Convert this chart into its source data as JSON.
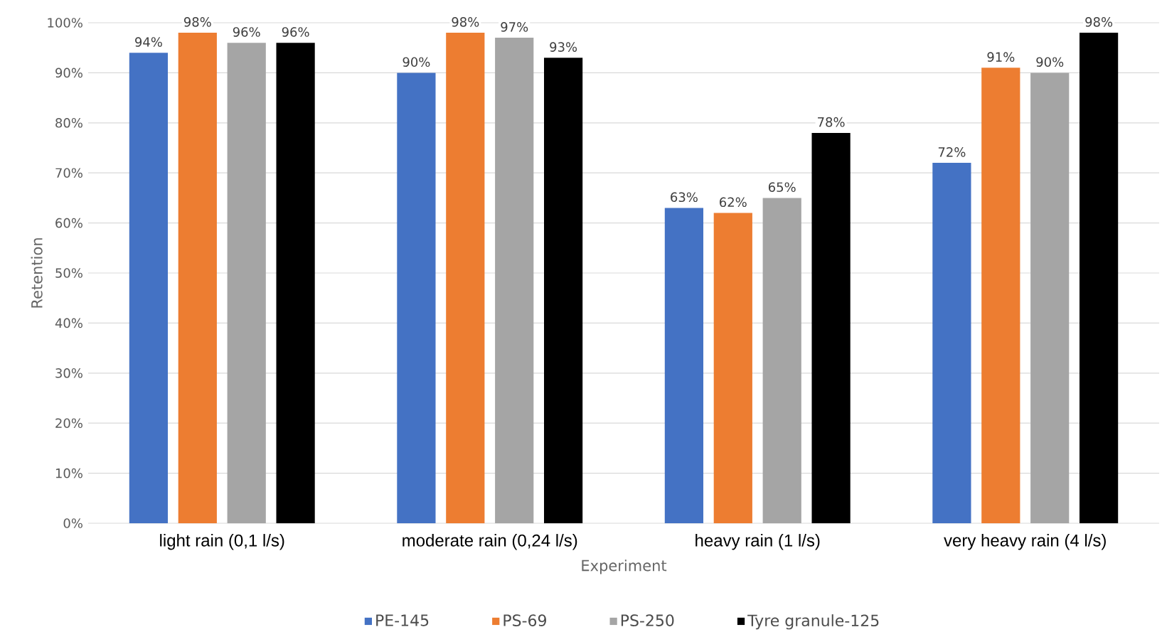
{
  "chart_data": {
    "type": "bar",
    "xlabel": "Experiment",
    "ylabel": "Retention",
    "categories": [
      "light rain (0,1 l/s)",
      "moderate rain (0,24 l/s)",
      "heavy rain (1 l/s)",
      "very heavy rain (4 l/s)"
    ],
    "series": [
      {
        "name": "PE-145",
        "color": "#4472c4",
        "values": [
          94,
          90,
          63,
          72
        ],
        "value_labels": [
          "94%",
          "90%",
          "63%",
          "72%"
        ]
      },
      {
        "name": "PS-69",
        "color": "#ed7d31",
        "values": [
          98,
          98,
          62,
          91
        ],
        "value_labels": [
          "98%",
          "98%",
          "62%",
          "91%"
        ]
      },
      {
        "name": "PS-250",
        "color": "#a5a5a5",
        "values": [
          96,
          97,
          65,
          90
        ],
        "value_labels": [
          "96%",
          "97%",
          "65%",
          "90%"
        ]
      },
      {
        "name": "Tyre granule-125",
        "color": "#000000",
        "values": [
          96,
          93,
          78,
          98
        ],
        "value_labels": [
          "96%",
          "93%",
          "78%",
          "98%"
        ]
      }
    ],
    "ylim": [
      0,
      100
    ],
    "yticks": [
      {
        "value": 0,
        "label": "0%"
      },
      {
        "value": 10,
        "label": "10%"
      },
      {
        "value": 20,
        "label": "20%"
      },
      {
        "value": 30,
        "label": "30%"
      },
      {
        "value": 40,
        "label": "40%"
      },
      {
        "value": 50,
        "label": "50%"
      },
      {
        "value": 60,
        "label": "60%"
      },
      {
        "value": 70,
        "label": "70%"
      },
      {
        "value": 80,
        "label": "80%"
      },
      {
        "value": 90,
        "label": "90%"
      },
      {
        "value": 100,
        "label": "100%"
      }
    ],
    "grid": "y",
    "legend": "bottom"
  }
}
